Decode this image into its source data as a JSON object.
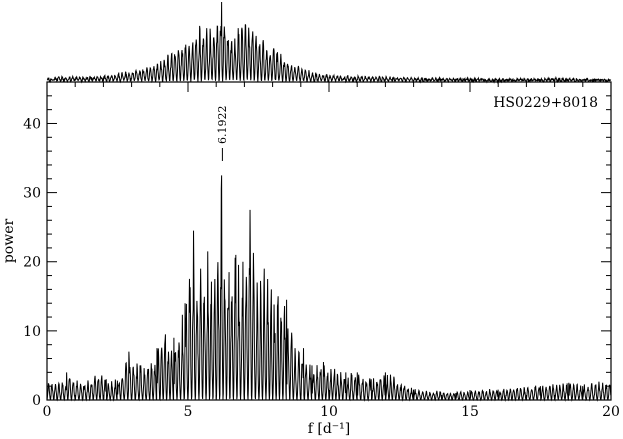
{
  "chart_data": [
    {
      "type": "line",
      "panel": "window-function",
      "title": "",
      "xlabel": "",
      "ylabel": "",
      "xlim": [
        0,
        20
      ],
      "peak_frequency": 6.1922,
      "series": [
        {
          "values_note": "",
          "x": [
            0.3,
            2.0,
            3.0,
            3.5,
            4.0,
            4.5,
            5.0,
            5.3,
            5.6,
            5.9,
            6.2,
            6.5,
            6.8,
            7.2,
            7.6,
            8.0,
            8.4,
            8.8,
            9.5,
            10.5,
            12,
            14,
            16,
            18,
            20
          ],
          "y": [
            0.05,
            0.06,
            0.12,
            0.18,
            0.25,
            0.4,
            0.55,
            0.7,
            0.7,
            0.65,
            1.0,
            0.58,
            0.72,
            0.75,
            0.55,
            0.45,
            0.3,
            0.2,
            0.1,
            0.06,
            0.05,
            0.03,
            0.02,
            0.03,
            0.01
          ]
        }
      ]
    },
    {
      "type": "line",
      "panel": "amplitude-spectrum",
      "title": "",
      "xlabel": "f  [d⁻¹]",
      "ylabel": "power",
      "xlim": [
        0,
        20
      ],
      "ylim": [
        0,
        46
      ],
      "xticks": [
        "0",
        "5",
        "10",
        "15",
        "20"
      ],
      "yticks": [
        "0",
        "10",
        "20",
        "30",
        "40"
      ],
      "grid": false,
      "series": [
        {
          "peaks_x": [
            0.7,
            1.3,
            1.7,
            2.1,
            2.5,
            2.9,
            3.3,
            3.6,
            3.9,
            4.2,
            4.5,
            4.9,
            5.2,
            5.45,
            5.7,
            5.95,
            6.19,
            6.45,
            6.7,
            6.95,
            7.2,
            7.45,
            7.7,
            7.95,
            8.2,
            8.5,
            8.8,
            9.1,
            9.4,
            9.8,
            10.2,
            10.6,
            11.0,
            11.5,
            12.0,
            13.0,
            14.5,
            16.0,
            17.5,
            18.5,
            19.0,
            19.7
          ],
          "peaks_y": [
            4.0,
            2.0,
            3.5,
            3.0,
            2.8,
            7.0,
            5.0,
            4.5,
            7.5,
            9.5,
            9.0,
            14.0,
            24.5,
            19.0,
            21.5,
            17.5,
            32.5,
            18.5,
            21.0,
            20.0,
            27.5,
            17.0,
            19.0,
            16.0,
            15.0,
            14.5,
            7.5,
            7.5,
            5.0,
            5.5,
            4.5,
            4.0,
            4.0,
            3.0,
            4.0,
            1.5,
            1.0,
            1.5,
            2.0,
            2.5,
            2.0,
            2.5
          ]
        }
      ]
    }
  ],
  "labels": {
    "object_name": "HS0229+8018",
    "peak_annotation": "6.1922"
  }
}
